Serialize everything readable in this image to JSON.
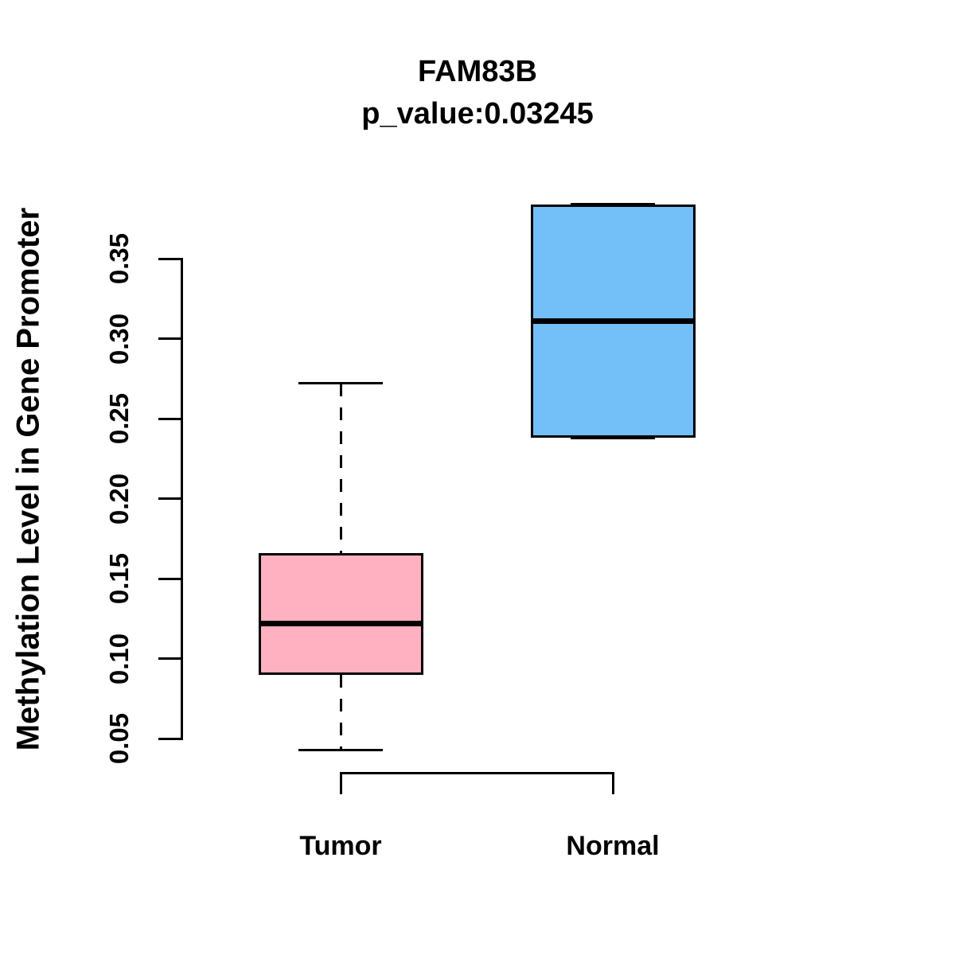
{
  "figure": {
    "background": "#FFFFFF",
    "ink_color": "#000000"
  },
  "chart_data": {
    "type": "boxplot",
    "title": "FAM83B",
    "subtitle": "p_value:0.03245",
    "p_value": 0.03245,
    "ylabel": "Methylation Level in Gene Promoter",
    "xlabel": "",
    "categories": [
      "Tumor",
      "Normal"
    ],
    "ylim": [
      0.05,
      0.35
    ],
    "yticks": [
      0.05,
      0.1,
      0.15,
      0.2,
      0.25,
      0.3,
      0.35
    ],
    "ytick_labels": [
      "0.05",
      "0.10",
      "0.15",
      "0.20",
      "0.25",
      "0.30",
      "0.35"
    ],
    "grid": false,
    "legend": "none",
    "box_border_color": "#000000",
    "series": [
      {
        "name": "Tumor",
        "color": "#FFB0C1",
        "whisker_low": 0.043,
        "q1": 0.09,
        "median": 0.122,
        "q3": 0.166,
        "whisker_high": 0.272,
        "outliers": []
      },
      {
        "name": "Normal",
        "color": "#73BFF7",
        "whisker_low": 0.238,
        "q1": 0.238,
        "median": 0.311,
        "q3": 0.384,
        "whisker_high": 0.384,
        "outliers": []
      }
    ]
  }
}
